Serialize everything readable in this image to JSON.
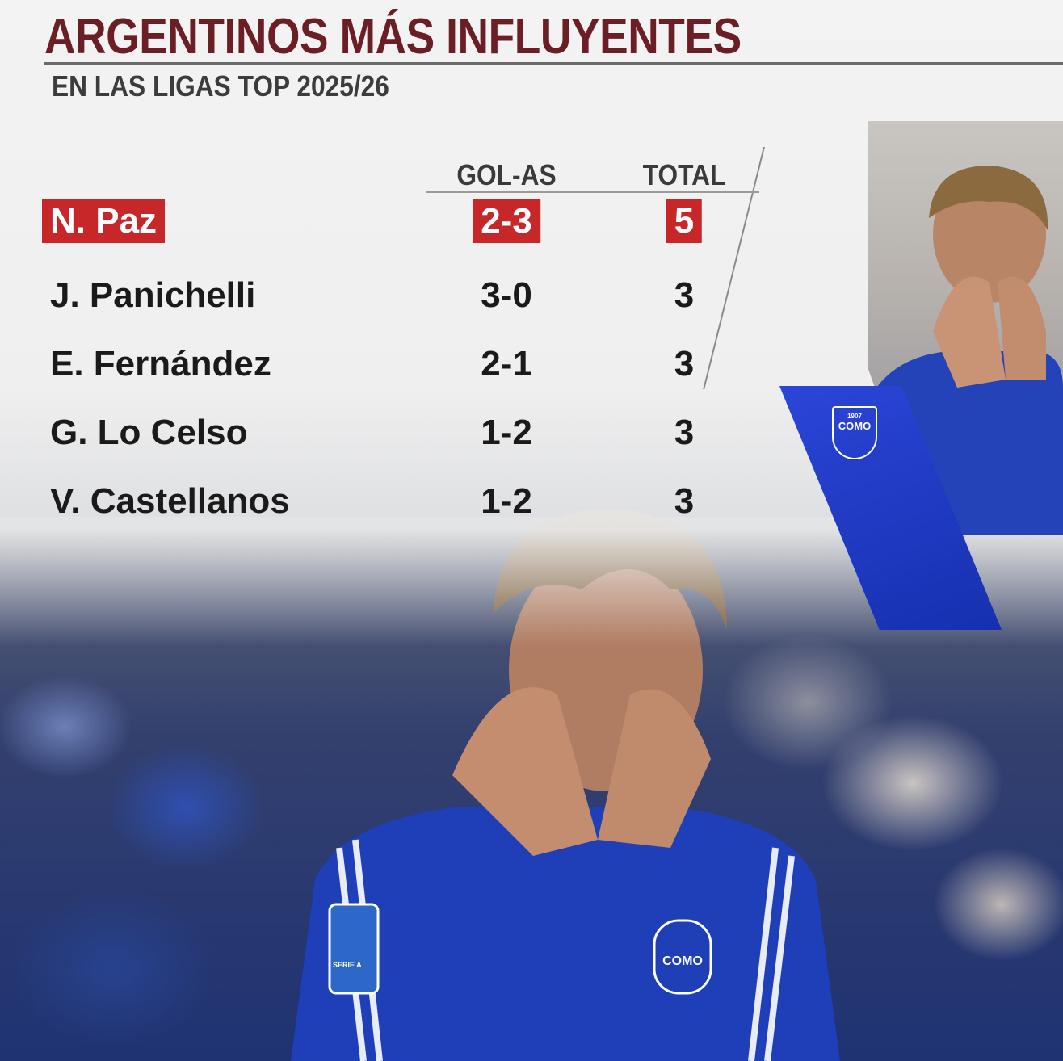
{
  "header": {
    "title": "ARGENTINOS MÁS INFLUYENTES",
    "subtitle": "EN LAS LIGAS TOP 2025/26"
  },
  "table": {
    "columns": [
      "GOL-AS",
      "TOTAL"
    ],
    "rows": [
      {
        "name": "N. Paz",
        "gol_as": "2-3",
        "total": "5",
        "highlighted": true
      },
      {
        "name": "J. Panichelli",
        "gol_as": "3-0",
        "total": "3"
      },
      {
        "name": "E. Fernández",
        "gol_as": "2-1",
        "total": "3"
      },
      {
        "name": "G. Lo Celso",
        "gol_as": "1-2",
        "total": "3"
      },
      {
        "name": "V. Castellanos",
        "gol_as": "1-2",
        "total": "3"
      }
    ]
  },
  "badges": {
    "club": "COMO",
    "club_year": "1907",
    "league": "SERIE A"
  },
  "colors": {
    "title": "#6b1f24",
    "highlight": "#c8272a",
    "club_blue": "#2b45d8"
  }
}
